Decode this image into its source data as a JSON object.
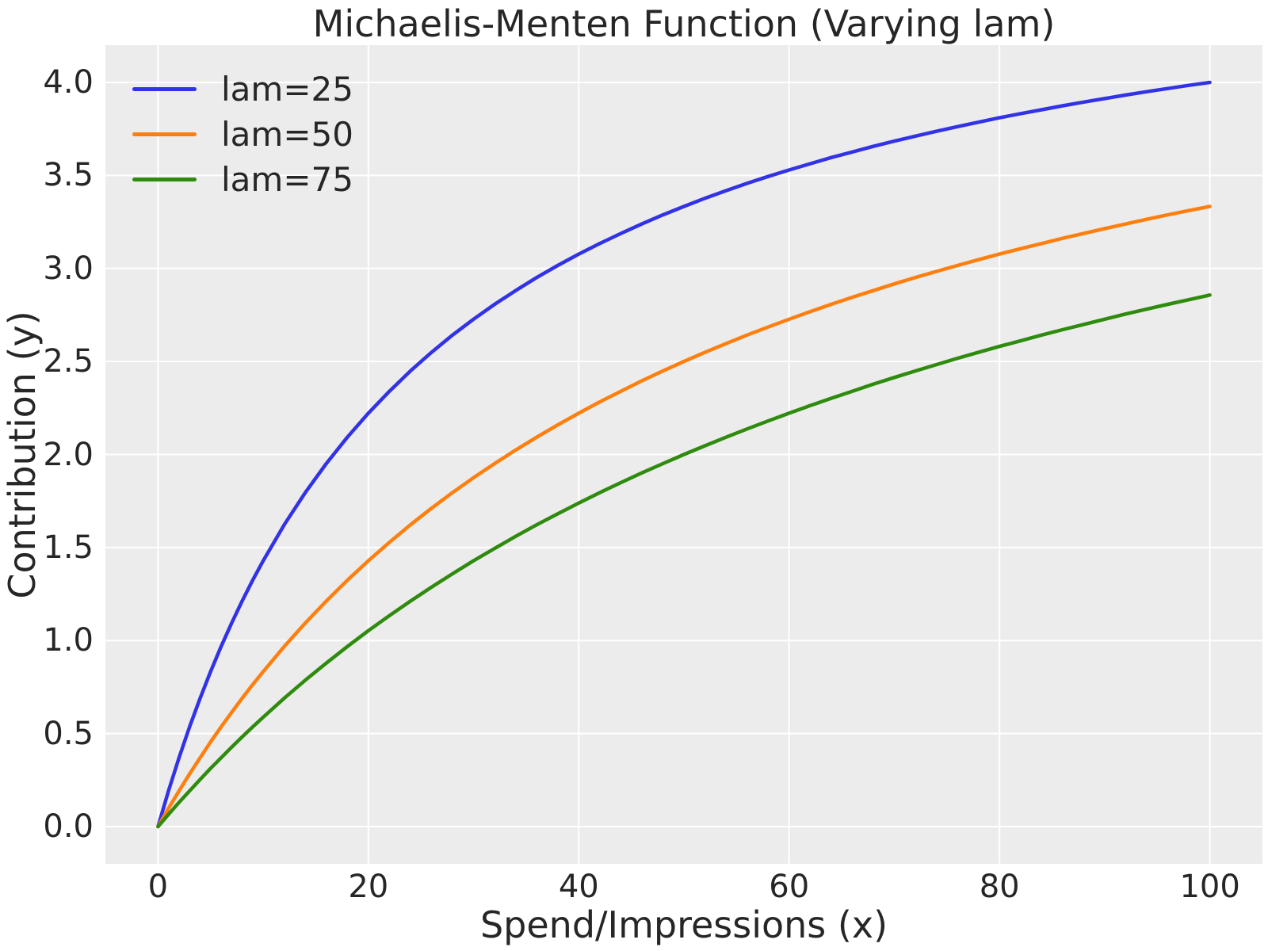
{
  "chart_data": {
    "type": "line",
    "title": "Michaelis-Menten Function (Varying lam)",
    "xlabel": "Spend/Impressions (x)",
    "ylabel": "Contribution (y)",
    "xlim": [
      -5,
      105
    ],
    "ylim": [
      -0.2,
      4.2
    ],
    "grid": true,
    "legend_position": "upper left",
    "plot_bg_color": "#ececec",
    "grid_color": "#ffffff",
    "text_color": "#262626",
    "xticks": {
      "values": [
        0,
        20,
        40,
        60,
        80,
        100
      ],
      "labels": [
        "0",
        "20",
        "40",
        "60",
        "80",
        "100"
      ]
    },
    "yticks": {
      "values": [
        0,
        0.5,
        1.0,
        1.5,
        2.0,
        2.5,
        3.0,
        3.5,
        4.0
      ],
      "labels": [
        "0.0",
        "0.5",
        "1.0",
        "1.5",
        "2.0",
        "2.5",
        "3.0",
        "3.5",
        "4.0"
      ]
    },
    "x": [
      0,
      1,
      2,
      3,
      4,
      5,
      6,
      7,
      8,
      9,
      10,
      12,
      14,
      16,
      18,
      20,
      22,
      24,
      26,
      28,
      30,
      32,
      34,
      36,
      38,
      40,
      42,
      44,
      46,
      48,
      50,
      52,
      54,
      56,
      58,
      60,
      62,
      64,
      66,
      68,
      70,
      72,
      74,
      76,
      78,
      80,
      82,
      84,
      86,
      88,
      90,
      92,
      94,
      96,
      98,
      100
    ],
    "series": [
      {
        "name": "lam=25",
        "color": "#3232e6",
        "values": [
          0.0,
          0.192,
          0.37,
          0.536,
          0.69,
          0.833,
          0.968,
          1.094,
          1.212,
          1.324,
          1.429,
          1.622,
          1.795,
          1.951,
          2.093,
          2.222,
          2.34,
          2.449,
          2.549,
          2.642,
          2.727,
          2.807,
          2.881,
          2.951,
          3.016,
          3.077,
          3.134,
          3.188,
          3.239,
          3.288,
          3.333,
          3.377,
          3.418,
          3.457,
          3.494,
          3.529,
          3.563,
          3.596,
          3.626,
          3.656,
          3.684,
          3.711,
          3.737,
          3.762,
          3.786,
          3.81,
          3.832,
          3.853,
          3.874,
          3.894,
          3.913,
          3.932,
          3.95,
          3.967,
          3.984,
          4.0
        ]
      },
      {
        "name": "lam=50",
        "color": "#ff7f0e",
        "values": [
          0.0,
          0.098,
          0.192,
          0.283,
          0.37,
          0.455,
          0.536,
          0.614,
          0.69,
          0.763,
          0.833,
          0.968,
          1.094,
          1.212,
          1.324,
          1.429,
          1.528,
          1.622,
          1.711,
          1.795,
          1.875,
          1.951,
          2.024,
          2.093,
          2.159,
          2.222,
          2.283,
          2.34,
          2.396,
          2.449,
          2.5,
          2.549,
          2.596,
          2.642,
          2.685,
          2.727,
          2.768,
          2.807,
          2.845,
          2.881,
          2.917,
          2.951,
          2.984,
          3.016,
          3.047,
          3.077,
          3.106,
          3.134,
          3.162,
          3.188,
          3.214,
          3.239,
          3.264,
          3.288,
          3.311,
          3.333
        ]
      },
      {
        "name": "lam=75",
        "color": "#2f8b0e",
        "values": [
          0.0,
          0.066,
          0.13,
          0.192,
          0.253,
          0.313,
          0.37,
          0.427,
          0.482,
          0.536,
          0.588,
          0.69,
          0.787,
          0.879,
          0.968,
          1.053,
          1.134,
          1.212,
          1.287,
          1.359,
          1.429,
          1.495,
          1.56,
          1.622,
          1.681,
          1.739,
          1.795,
          1.849,
          1.901,
          1.951,
          2.0,
          2.047,
          2.093,
          2.137,
          2.18,
          2.222,
          2.263,
          2.302,
          2.34,
          2.378,
          2.414,
          2.449,
          2.483,
          2.517,
          2.549,
          2.581,
          2.611,
          2.642,
          2.671,
          2.699,
          2.727,
          2.755,
          2.781,
          2.807,
          2.832,
          2.857
        ]
      }
    ]
  }
}
